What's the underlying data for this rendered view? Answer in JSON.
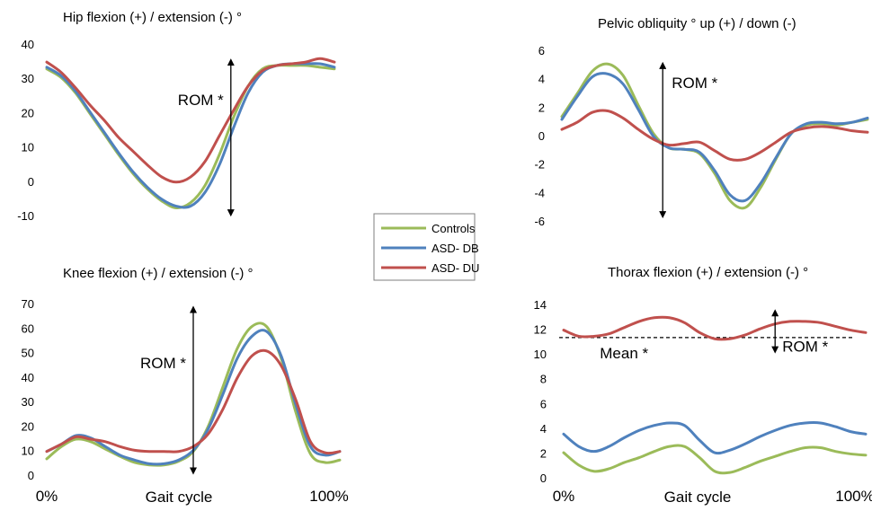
{
  "colors": {
    "Controls": "#9bbb59",
    "ASD- DB": "#4f81bd",
    "ASD- DU": "#c0504d"
  },
  "legend": [
    "Controls",
    "ASD- DB",
    "ASD- DU"
  ],
  "chart_data": [
    {
      "type": "line",
      "title": "Hip flexion (+) / extension (-) °",
      "xlabel": "",
      "ylim": [
        -10,
        40
      ],
      "yticks": [
        -10,
        0,
        10,
        20,
        30,
        40
      ],
      "xticks": [],
      "x": [
        0,
        5,
        10,
        15,
        20,
        25,
        30,
        35,
        40,
        45,
        50,
        55,
        60,
        65,
        70,
        75,
        80,
        85,
        90,
        95,
        100
      ],
      "annotations": [
        {
          "text": "ROM *",
          "x": 64,
          "arrow_y": [
            -9,
            35
          ]
        }
      ],
      "series": [
        {
          "name": "Controls",
          "values": [
            33,
            30.5,
            26,
            20,
            14,
            8,
            2.5,
            -2,
            -5.5,
            -7.5,
            -6,
            -1,
            8,
            19,
            28,
            33,
            34,
            34,
            34,
            33.5,
            33
          ]
        },
        {
          "name": "ASD- DB",
          "values": [
            33.5,
            31,
            26.5,
            20.5,
            14.5,
            8.5,
            3,
            -1.5,
            -5,
            -7,
            -7,
            -3,
            5,
            16,
            26,
            32,
            34,
            34.5,
            34.5,
            34.5,
            33.5
          ]
        },
        {
          "name": "ASD- DU",
          "values": [
            35,
            32,
            27.5,
            22.5,
            18,
            13,
            9,
            5,
            1.5,
            0,
            1.5,
            6,
            13.5,
            21,
            28,
            32.5,
            34,
            34.5,
            35,
            36,
            35
          ]
        }
      ]
    },
    {
      "type": "line",
      "title": "Pelvic obliquity ° up (+) / down (-)",
      "xlabel": "",
      "ylim": [
        -6,
        6
      ],
      "yticks": [
        -6,
        -4,
        -2,
        0,
        2,
        4,
        6
      ],
      "xticks": [],
      "x": [
        0,
        5,
        10,
        15,
        20,
        25,
        30,
        35,
        40,
        45,
        50,
        55,
        60,
        65,
        70,
        75,
        80,
        85,
        90,
        95,
        100
      ],
      "annotations": [
        {
          "text": "ROM *",
          "x": 33,
          "arrow_y": [
            -5.5,
            5
          ]
        }
      ],
      "series": [
        {
          "name": "Controls",
          "values": [
            1.4,
            3,
            4.6,
            5.1,
            4.3,
            2.2,
            0.2,
            -0.8,
            -0.9,
            -1.2,
            -2.6,
            -4.5,
            -5,
            -3.6,
            -1.6,
            0.2,
            0.8,
            0.9,
            0.8,
            1,
            1.2
          ]
        },
        {
          "name": "ASD- DB",
          "values": [
            1.2,
            2.8,
            4.2,
            4.4,
            3.7,
            1.9,
            0,
            -0.8,
            -0.9,
            -1.1,
            -2.4,
            -4.1,
            -4.5,
            -3.3,
            -1.5,
            0.2,
            0.9,
            1,
            0.9,
            1,
            1.3
          ]
        },
        {
          "name": "ASD- DU",
          "values": [
            0.5,
            1,
            1.7,
            1.8,
            1.3,
            0.5,
            -0.2,
            -0.6,
            -0.5,
            -0.4,
            -1,
            -1.6,
            -1.6,
            -1.1,
            -0.4,
            0.3,
            0.6,
            0.7,
            0.6,
            0.4,
            0.3
          ]
        }
      ]
    },
    {
      "type": "line",
      "title": "Knee flexion (+) / extension (-) °",
      "xlabel": "Gait cycle",
      "ylim": [
        0,
        70
      ],
      "yticks": [
        0,
        10,
        20,
        30,
        40,
        50,
        60,
        70
      ],
      "xticks": [
        "0%",
        "100%"
      ],
      "x": [
        0,
        5,
        10,
        15,
        20,
        25,
        30,
        35,
        40,
        45,
        50,
        55,
        60,
        65,
        70,
        75,
        80,
        85,
        90,
        95,
        100
      ],
      "annotations": [
        {
          "text": "ROM *",
          "x": 50,
          "arrow_y": [
            2,
            68
          ]
        }
      ],
      "series": [
        {
          "name": "Controls",
          "values": [
            7,
            12,
            15,
            14,
            11,
            8,
            5.5,
            4.5,
            4.5,
            6,
            10,
            20,
            36,
            52,
            61,
            61,
            48,
            26,
            9,
            5.5,
            6.5
          ]
        },
        {
          "name": "ASD- DB",
          "values": [
            10,
            13,
            16.5,
            15.5,
            12,
            8.5,
            6.5,
            5,
            5,
            6.5,
            10.5,
            19,
            33,
            48,
            57,
            59,
            49,
            29,
            12,
            8.5,
            10
          ]
        },
        {
          "name": "ASD- DU",
          "values": [
            10,
            13,
            16,
            15,
            14,
            12,
            10.5,
            10,
            10,
            10,
            12,
            17,
            27,
            40,
            49,
            51,
            45,
            31,
            14,
            9.5,
            10
          ]
        }
      ]
    },
    {
      "type": "line",
      "title": "Thorax flexion (+) / extension (-) °",
      "xlabel": "Gait cycle",
      "ylim": [
        0,
        14
      ],
      "yticks": [
        0,
        2,
        4,
        6,
        8,
        10,
        12,
        14
      ],
      "xticks": [
        "0%",
        "100%"
      ],
      "x": [
        0,
        5,
        10,
        15,
        20,
        25,
        30,
        35,
        40,
        45,
        50,
        55,
        60,
        65,
        70,
        75,
        80,
        85,
        90,
        95,
        100
      ],
      "mean_line": {
        "label": "Mean *",
        "value": 11.4
      },
      "annotations": [
        {
          "text": "ROM *",
          "x": 70,
          "arrow_y": [
            10.4,
            13.4
          ]
        }
      ],
      "series": [
        {
          "name": "Controls",
          "values": [
            2.1,
            1.1,
            0.6,
            0.8,
            1.3,
            1.7,
            2.2,
            2.6,
            2.6,
            1.7,
            0.6,
            0.5,
            0.9,
            1.4,
            1.8,
            2.2,
            2.5,
            2.5,
            2.2,
            2,
            1.9
          ]
        },
        {
          "name": "ASD- DB",
          "values": [
            3.6,
            2.6,
            2.2,
            2.6,
            3.3,
            3.9,
            4.3,
            4.5,
            4.3,
            3.1,
            2.1,
            2.3,
            2.8,
            3.4,
            3.9,
            4.3,
            4.5,
            4.5,
            4.2,
            3.8,
            3.6
          ]
        },
        {
          "name": "ASD- DU",
          "values": [
            12,
            11.5,
            11.5,
            11.7,
            12.2,
            12.7,
            13,
            13,
            12.6,
            11.8,
            11.3,
            11.3,
            11.6,
            12.1,
            12.5,
            12.7,
            12.7,
            12.6,
            12.3,
            12,
            11.8
          ]
        }
      ]
    }
  ]
}
